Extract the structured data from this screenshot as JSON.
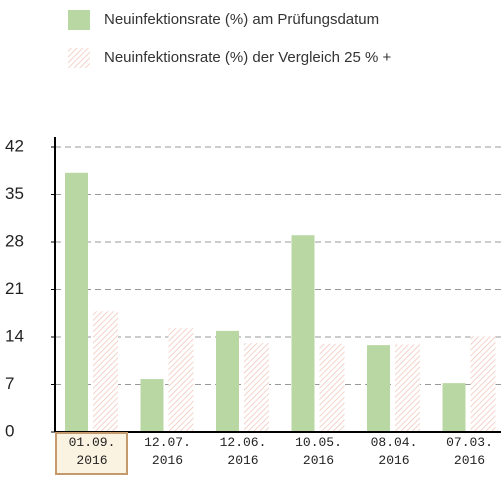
{
  "chart_data": {
    "type": "bar",
    "categories": [
      "01.09. 2016",
      "12.07. 2016",
      "12.06. 2016",
      "10.05. 2016",
      "08.04. 2016",
      "07.03. 2016"
    ],
    "series": [
      {
        "name": "Neuinfektionsrate (%) am Prüfungsdatum",
        "color": "#b8d7a3",
        "values": [
          38.2,
          7.8,
          14.9,
          29.0,
          12.8,
          7.2
        ]
      },
      {
        "name": "Neuinfektionsrate (%) der Vergleich 25 % +",
        "color": "#f0c8bd",
        "pattern": "hatch",
        "values": [
          17.8,
          15.3,
          13.1,
          13.0,
          12.9,
          14.1
        ]
      }
    ],
    "ylim": [
      0,
      42
    ],
    "yticks": [
      0,
      7,
      14,
      21,
      28,
      35,
      42
    ],
    "grid": true,
    "selected_category": 0
  }
}
